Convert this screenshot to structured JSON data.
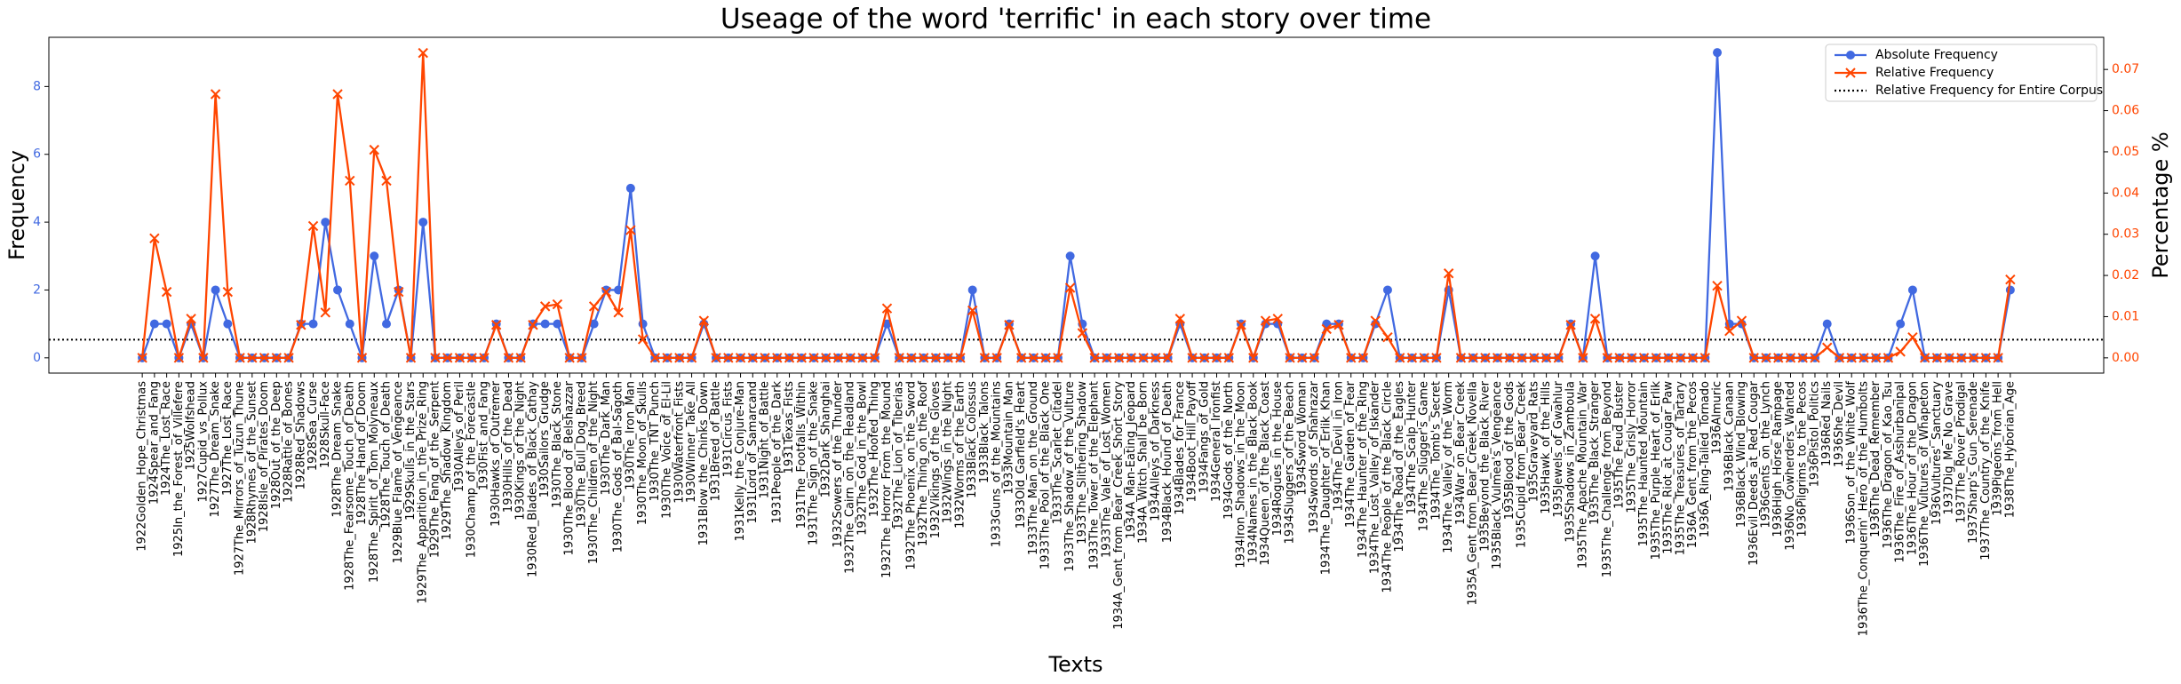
{
  "chart_data": {
    "type": "line",
    "title": "Useage of the word 'terrific' in each story over time",
    "xlabel": "Texts",
    "ylabel": "Frequency",
    "y2label": "Percentage %",
    "ylim": [
      -0.45,
      9.45
    ],
    "yticks": [
      0,
      2,
      4,
      6,
      8
    ],
    "y2lim": [
      -0.0037,
      0.0778
    ],
    "y2ticks": [
      {
        "value": 0,
        "label": "0.00"
      },
      {
        "value": 0.01,
        "label": "0.01"
      },
      {
        "value": 0.02,
        "label": "0.02"
      },
      {
        "value": 0.03,
        "label": "0.03"
      },
      {
        "value": 0.04,
        "label": "0.04"
      },
      {
        "value": 0.05,
        "label": "0.05"
      },
      {
        "value": 0.06,
        "label": "0.06"
      },
      {
        "value": 0.07,
        "label": "0.07"
      }
    ],
    "ycolor": "#4169e1",
    "y2color": "#ff4500",
    "grid": false,
    "legend": "upper right",
    "categories": [
      "1922Golden_Hope_Christmas",
      "1924Spear_and_Fang",
      "1924The_Lost_Race",
      "1925In_the_Forest_of_Villefere",
      "1925Wolfshead",
      "1927Cupid_vs_Pollux",
      "1927The_Dream_Snake",
      "1927The_Lost_Race",
      "1927The_Mirrors_of_Tuzun_Thune",
      "1928Rhymes_of_the_Sunset",
      "1928Isle_of_Pirates_Doom",
      "1928Out_of_the_Deep",
      "1928Rattle_of_Bones",
      "1928Red_Shadows",
      "1928Sea_Curse",
      "1928Skull-Face",
      "1928The_Dream_Snake",
      "1928The_Fearsome_Touch_of_Death",
      "1928The_Hand_of_Doom",
      "1928The_Spirit_of_Tom_Molyneaux",
      "1928The_Touch_of_Death",
      "1929Blue_Flame_of_Vengeance",
      "1929Skulls_in_the_Stars",
      "1929The_Apparition_in_the_Prize_Ring",
      "1929The_Fang_of_the_Serpent",
      "1929The_Shadow_Kingdom",
      "1930Alleys_of_Peril",
      "1930Champ_of_the_Forecastle",
      "1930Fist_and_Fang",
      "1930Hawks_of_Outremer",
      "1930Hills_of_the_Dead",
      "1930Kings_of_the_Night",
      "1930Red_Blades_of_Black_Cathay",
      "1930Sailors_Grudge",
      "1930The_Black_Stone",
      "1930The_Blood_of_Belshazzar",
      "1930The_Bull_Dog_Breed",
      "1930The_Children_of_the_Night",
      "1930The_Dark_Man",
      "1930The_Gods_of_Bal-Sagoth",
      "1930The_Iron_Man",
      "1930The_Moon_of_Skulls",
      "1930The_TNT_Punch",
      "1930The_Voice_of_El-Lil",
      "1930Waterfront_Fists",
      "1930Winner_Take_All",
      "1931Blow_the_Chinks_Down",
      "1931Breed_of_Battle",
      "1931Circus_Fists",
      "1931Kelly_the_Conjure-Man",
      "1931Lord_of_Samarcand",
      "1931Night_of_Battle",
      "1931People_of_the_Dark",
      "1931Texas_Fists",
      "1931The_Footfalls_Within",
      "1931The_Sign_of_the_Snake",
      "1932Dark_Shanghai",
      "1932Sowers_of_the_Thunder",
      "1932The_Cairn_on_the_Headland",
      "1932The_God_in_the_Bowl",
      "1932The_Hoofed_Thing",
      "1932The_Horror_From_the_Mound",
      "1932The_Lion_of_Tiberias",
      "1932The_Phoenix_on_the_Sword",
      "1932The_Thing_on_the_Roof",
      "1932Vikings_of_the_Gloves",
      "1932Wings_in_the_Night",
      "1932Worms_of_the_Earth",
      "1933Black_Colossus",
      "1933Black_Talons",
      "1933Guns_of_the_Mountains",
      "1933Mountain_Man",
      "1933Old_Garfield's_Heart",
      "1933The_Man_on_the_Ground",
      "1933The_Pool_of_the_Black_One",
      "1933The_Scarlet_Citadel",
      "1933The_Shadow_of_the_Vulture",
      "1933The_Slithering_Shadow",
      "1933The_Tower_of_the_Elephant",
      "1933The_Vale_of_Lost_Women",
      "1934A_Gent_from_Bear_Creek_Short_Story",
      "1934A_Man-Eating_Jeopard",
      "1934A_Witch_Shall_be_Born",
      "1934Alleys_of_Darkness",
      "1934Black_Hound_of_Death",
      "1934Blades_for_France",
      "1934Boot_Hill_Payoff",
      "1934Fangs_of_Gold",
      "1934General_Ironfist",
      "1934Gods_of_the_North",
      "1934Iron_Shadows_in_the_Moon",
      "1934Names_in_the_Black_Book",
      "1934Queen_of_the_Black_Coast",
      "1934Rogues_in_the_House",
      "1934Sluggers_of_the_Beach",
      "1934Sword_Woman",
      "1934Swords_of_Shahrazar",
      "1934The_Daughter_of_Erlik_Khan",
      "1934The_Devil_in_Iron",
      "1934The_Garden_of_Fear",
      "1934The_Haunter_of_the_Ring",
      "1934The_Lost_Valley_of_Iskander",
      "1934The_People_of_the_Black_Circle",
      "1934The_Road_of_the_Eagles",
      "1934The_Scalp_Hunter",
      "1934The_Slugger's_Game",
      "1934The_Tomb's_Secret",
      "1934The_Valley_of_the_Worm",
      "1934War_on_Bear_Creek",
      "1935A_Gent_from_Bear_Creek_Novella",
      "1935Beyond_the_Black_River",
      "1935Black_Vulmea's_Vengeance",
      "1935Blood_of_the_Gods",
      "1935Cupid_from_Bear_Creek",
      "1935Graveyard_Rats",
      "1935Hawk_of_the_Hills",
      "1935Jewels_of_Gwahlur",
      "1935Shadows_in_Zamboula",
      "1935The_Apache_Mountain_War",
      "1935The_Black_Stranger",
      "1935The_Challenge_from_Beyond",
      "1935The_Feud_Buster",
      "1935The_Grisly_Horror",
      "1935The_Haunted_Mountain",
      "1935The_Purple_Heart_of_Erlik",
      "1935The_Riot_at_Cougar_Paw",
      "1935The_Treasures_of_Tartary",
      "1936A_Gent_from_the_Pecos",
      "1936A_Ring-Tailed_Tornado",
      "1936Almuric",
      "1936Black_Canaan",
      "1936Black_Wind_Blowing",
      "1936Evil_Deeds_at_Red_Cougar",
      "1936Gents_on_the_Lynch",
      "1936High_Horse_Rampage",
      "1936No_Cowherders_Wanted",
      "1936Pilgrims_to_the_Pecos",
      "1936Pistol_Politics",
      "1936Red_Nails",
      "1936She_Devil",
      "1936Son_of_the_White_Wolf",
      "1936The_Conquerin'_Hero_of_the_Humbolts",
      "1936The_Dead_Remember",
      "1936The_Dragon_of_Kao_Tsu",
      "1936The_Fire_of_Asshurbanipal",
      "1936The_Hour_of_the_Dragon",
      "1936The_Vultures_of_Whapeton",
      "1936Vultures'_Sanctuary",
      "1937Dig_Me_No_Grave",
      "1937The_Rover_Prodigal",
      "1937Sharp's_Gun_Serenade",
      "1937The_Country_of_the_Knife",
      "1939Pigeons_from_Hell",
      "1938The_Hyborian_Age"
    ],
    "series": [
      {
        "name": "Absolute Frequency",
        "color": "#4169e1",
        "marker": "circle",
        "values": [
          0,
          1,
          1,
          0,
          1,
          0,
          2,
          1,
          0,
          0,
          0,
          0,
          0,
          1,
          1,
          4,
          2,
          1,
          0,
          3,
          1,
          2,
          0,
          4,
          0,
          0,
          0,
          0,
          0,
          1,
          0,
          0,
          1,
          1,
          1,
          0,
          0,
          1,
          2,
          2,
          5,
          1,
          0,
          0,
          0,
          0,
          1,
          0,
          0,
          0,
          0,
          0,
          0,
          0,
          0,
          0,
          0,
          0,
          0,
          0,
          0,
          1,
          0,
          0,
          0,
          0,
          0,
          0,
          2,
          0,
          0,
          1,
          0,
          0,
          0,
          0,
          3,
          1,
          0,
          0,
          0,
          0,
          0,
          0,
          0,
          1,
          0,
          0,
          0,
          0,
          1,
          0,
          1,
          1,
          0,
          0,
          0,
          1,
          1,
          0,
          0,
          1,
          2,
          0,
          0,
          0,
          0,
          2,
          0,
          0,
          0,
          0,
          0,
          0,
          0,
          0,
          0,
          1,
          0,
          3,
          0,
          0,
          0,
          0,
          0,
          0,
          0,
          0,
          0,
          9,
          1,
          1,
          0,
          0,
          0,
          0,
          0,
          0,
          1,
          0,
          0,
          0,
          0,
          0,
          1,
          2,
          0,
          0,
          0,
          0,
          0,
          0,
          0,
          2
        ]
      },
      {
        "name": "Relative Frequency",
        "color": "#ff4500",
        "marker": "x",
        "axis": "y2",
        "values": [
          0,
          0.029,
          0.016,
          0,
          0.0095,
          0,
          0.064,
          0.016,
          0,
          0,
          0,
          0,
          0,
          0.008,
          0.032,
          0.011,
          0.064,
          0.043,
          0,
          0.0505,
          0.043,
          0.016,
          0,
          0.074,
          0,
          0,
          0,
          0,
          0,
          0.008,
          0,
          0,
          0.008,
          0.0125,
          0.013,
          0,
          0,
          0.0125,
          0.016,
          0.011,
          0.031,
          0.0045,
          0,
          0,
          0,
          0,
          0.009,
          0,
          0,
          0,
          0,
          0,
          0,
          0,
          0,
          0,
          0,
          0,
          0,
          0,
          0,
          0.012,
          0,
          0,
          0,
          0,
          0,
          0,
          0.0115,
          0,
          0,
          0.008,
          0,
          0,
          0,
          0,
          0.017,
          0.006,
          0,
          0,
          0,
          0,
          0,
          0,
          0,
          0.0095,
          0,
          0,
          0,
          0,
          0.008,
          0,
          0.009,
          0.0095,
          0,
          0,
          0,
          0.007,
          0.008,
          0,
          0,
          0.009,
          0.005,
          0,
          0,
          0,
          0,
          0.0205,
          0,
          0,
          0,
          0,
          0,
          0,
          0,
          0,
          0,
          0.008,
          0,
          0.0095,
          0,
          0,
          0,
          0,
          0,
          0,
          0,
          0,
          0,
          0.0175,
          0.0065,
          0.009,
          0,
          0,
          0,
          0,
          0,
          0,
          0.0025,
          0,
          0,
          0,
          0,
          0,
          0.0015,
          0.005,
          0,
          0,
          0,
          0,
          0,
          0,
          0,
          0.019
        ]
      }
    ],
    "reference_line": {
      "name": "Relative Frequency for Entire Corpus",
      "value": 0.0044,
      "axis": "y2",
      "color": "#000000",
      "style": "dotted"
    }
  }
}
